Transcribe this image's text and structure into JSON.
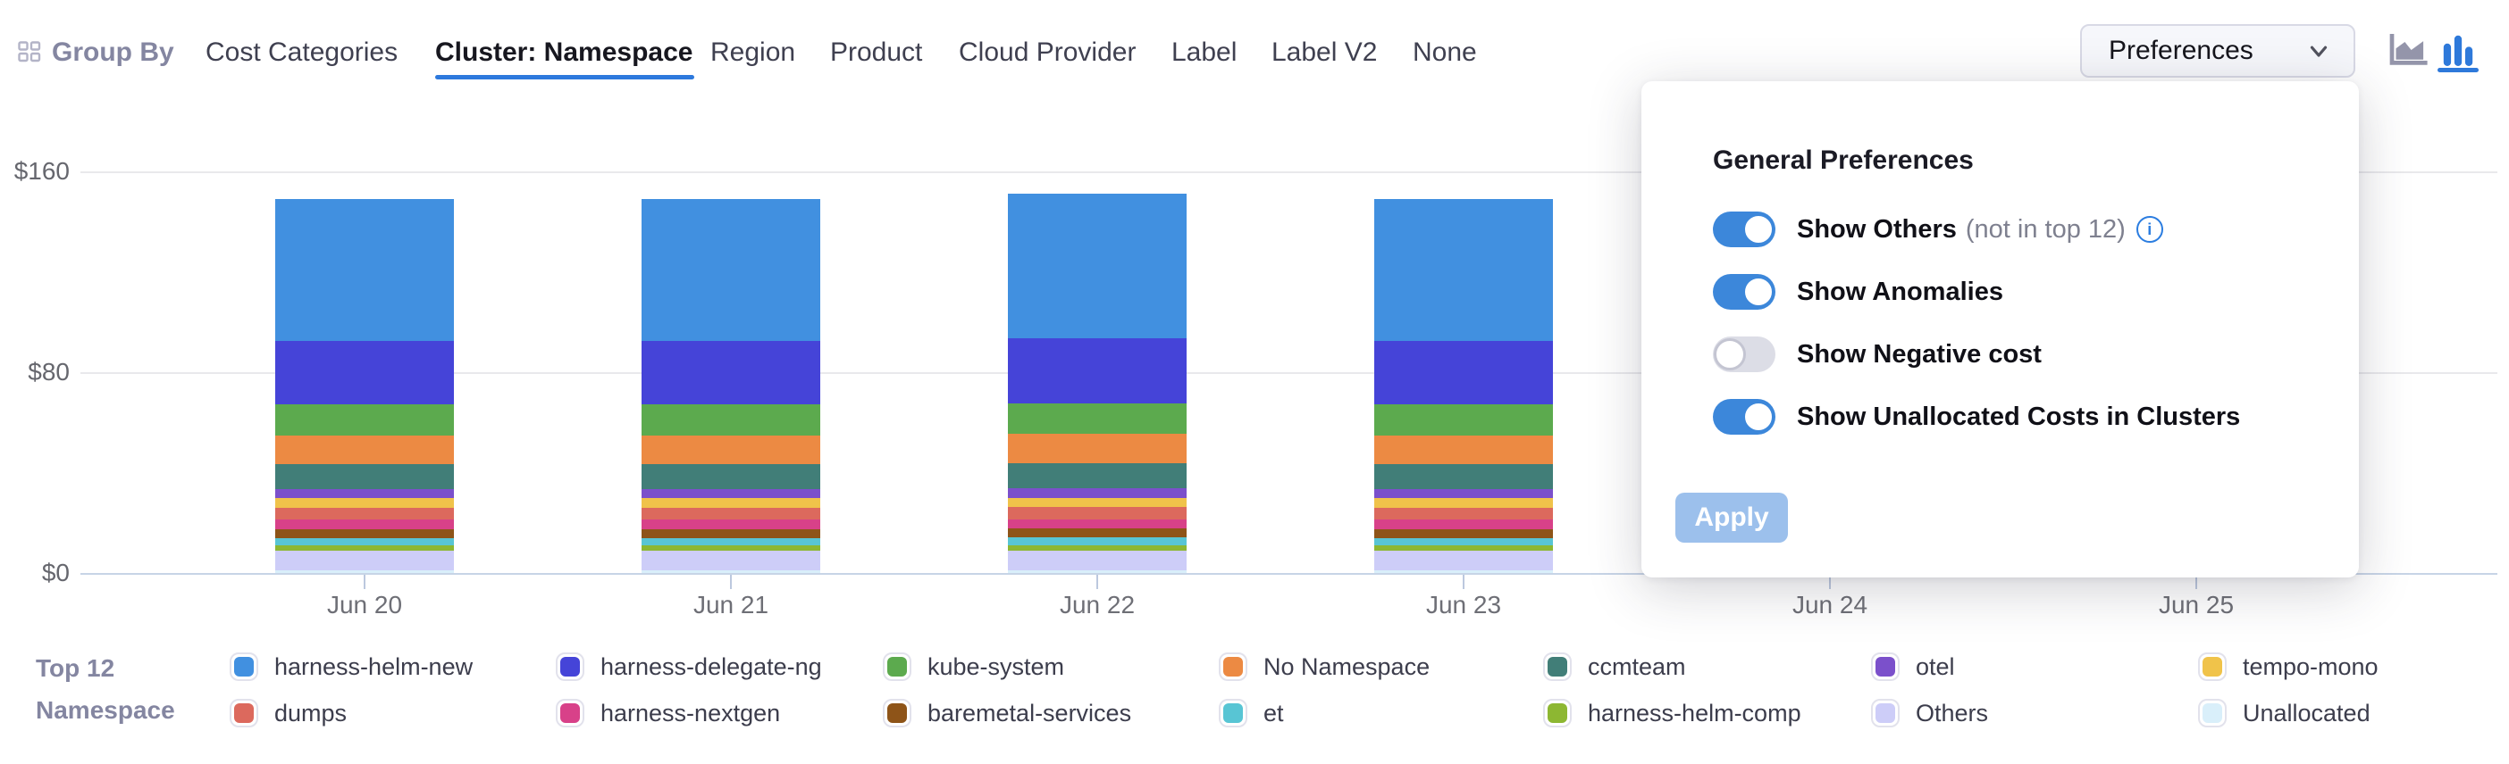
{
  "header": {
    "group_by_label": "Group By",
    "tabs": [
      {
        "label": "Cost Categories",
        "selected": false
      },
      {
        "label": "Cluster: Namespace",
        "selected": true
      },
      {
        "label": "Region",
        "selected": false
      },
      {
        "label": "Product",
        "selected": false
      },
      {
        "label": "Cloud Provider",
        "selected": false
      },
      {
        "label": "Label",
        "selected": false
      },
      {
        "label": "Label V2",
        "selected": false
      },
      {
        "label": "None",
        "selected": false
      }
    ],
    "preferences_label": "Preferences",
    "chart_type": {
      "area_selected": false,
      "bar_selected": true
    },
    "accent_color": "#2d79dd"
  },
  "preferences_panel": {
    "title": "General Preferences",
    "toggles": [
      {
        "label": "Show Others",
        "suffix": "(not in top 12)",
        "info": true,
        "on": true
      },
      {
        "label": "Show Anomalies",
        "suffix": "",
        "info": false,
        "on": true
      },
      {
        "label": "Show Negative cost",
        "suffix": "",
        "info": false,
        "on": false
      },
      {
        "label": "Show Unallocated Costs in Clusters",
        "suffix": "",
        "info": false,
        "on": true
      }
    ],
    "apply_label": "Apply",
    "toggle_on_color": "#3c87da",
    "toggle_off_color": "#dcdde6"
  },
  "chart_data": {
    "type": "bar",
    "stacked": true,
    "grid": true,
    "categories": [
      "Jun 20",
      "Jun 21",
      "Jun 22",
      "Jun 23",
      "Jun 24",
      "Jun 25"
    ],
    "yticks": [
      {
        "value": 0,
        "label": "$0"
      },
      {
        "value": 80,
        "label": "$80"
      },
      {
        "value": 160,
        "label": "$160"
      }
    ],
    "ylim": [
      0,
      160
    ],
    "currency": "$",
    "series": [
      {
        "name": "harness-helm-new",
        "color": "#4190e0",
        "values": [
          56.5,
          56.5,
          57.5,
          56.5,
          null,
          null
        ]
      },
      {
        "name": "harness-delegate-ng",
        "color": "#4544d8",
        "values": [
          25.5,
          25.5,
          26.0,
          25.5,
          null,
          null
        ]
      },
      {
        "name": "kube-system",
        "color": "#5caa4e",
        "values": [
          12.2,
          12.2,
          12.3,
          12.2,
          null,
          null
        ]
      },
      {
        "name": "No Namespace",
        "color": "#ec8a43",
        "values": [
          11.5,
          11.5,
          11.6,
          11.5,
          null,
          null
        ]
      },
      {
        "name": "ccmteam",
        "color": "#417e78",
        "values": [
          9.8,
          9.8,
          9.9,
          9.8,
          null,
          null
        ]
      },
      {
        "name": "otel",
        "color": "#7b50cb",
        "values": [
          3.8,
          3.8,
          3.8,
          3.8,
          null,
          null
        ]
      },
      {
        "name": "tempo-mono",
        "color": "#f0c34a",
        "values": [
          3.8,
          3.8,
          3.8,
          3.8,
          null,
          null
        ]
      },
      {
        "name": "dumps",
        "color": "#dc695d",
        "values": [
          4.7,
          4.7,
          4.8,
          4.7,
          null,
          null
        ]
      },
      {
        "name": "harness-nextgen",
        "color": "#d84189",
        "values": [
          3.7,
          3.7,
          3.7,
          3.7,
          null,
          null
        ]
      },
      {
        "name": "baremetal-services",
        "color": "#8e5418",
        "values": [
          3.6,
          3.6,
          3.6,
          3.6,
          null,
          null
        ]
      },
      {
        "name": "et",
        "color": "#58c5d4",
        "values": [
          3.0,
          3.0,
          3.0,
          3.0,
          null,
          null
        ]
      },
      {
        "name": "harness-helm-comp",
        "color": "#8db732",
        "values": [
          2.1,
          2.1,
          2.1,
          2.1,
          null,
          null
        ]
      },
      {
        "name": "Others",
        "color": "#cdcdf8",
        "values": [
          7.8,
          7.8,
          7.9,
          7.8,
          null,
          null
        ]
      },
      {
        "name": "Unallocated",
        "color": "#d9effa",
        "values": [
          1.1,
          1.1,
          1.1,
          1.1,
          null,
          null
        ]
      }
    ]
  },
  "legend": {
    "title_line1": "Top 12",
    "title_line2": "Namespace"
  }
}
